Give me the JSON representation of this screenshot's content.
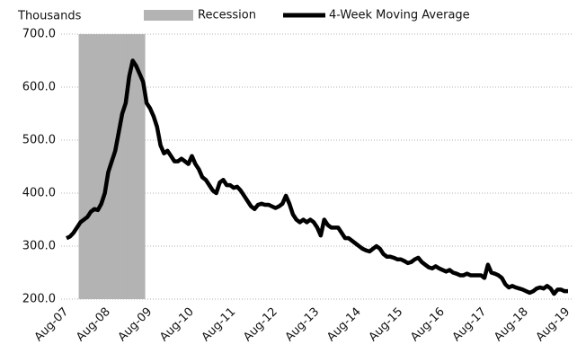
{
  "chart_data": {
    "type": "line",
    "y_axis_label": "Thousands",
    "categories": [
      "Aug-07",
      null,
      null,
      null,
      null,
      null,
      null,
      null,
      null,
      null,
      null,
      null,
      "Aug-08",
      null,
      null,
      null,
      null,
      null,
      null,
      null,
      null,
      null,
      null,
      null,
      "Aug-09",
      null,
      null,
      null,
      null,
      null,
      null,
      null,
      null,
      null,
      null,
      null,
      "Aug-10",
      null,
      null,
      null,
      null,
      null,
      null,
      null,
      null,
      null,
      null,
      null,
      "Aug-11",
      null,
      null,
      null,
      null,
      null,
      null,
      null,
      null,
      null,
      null,
      null,
      "Aug-12",
      null,
      null,
      null,
      null,
      null,
      null,
      null,
      null,
      null,
      null,
      null,
      "Aug-13",
      null,
      null,
      null,
      null,
      null,
      null,
      null,
      null,
      null,
      null,
      null,
      "Aug-14",
      null,
      null,
      null,
      null,
      null,
      null,
      null,
      null,
      null,
      null,
      null,
      "Aug-15",
      null,
      null,
      null,
      null,
      null,
      null,
      null,
      null,
      null,
      null,
      null,
      "Aug-16",
      null,
      null,
      null,
      null,
      null,
      null,
      null,
      null,
      null,
      null,
      null,
      "Aug-17",
      null,
      null,
      null,
      null,
      null,
      null,
      null,
      null,
      null,
      null,
      null,
      "Aug-18",
      null,
      null,
      null,
      null,
      null,
      null,
      null,
      null,
      null,
      null,
      null,
      "Aug-19"
    ],
    "series": [
      {
        "name": "Recession",
        "type": "shade",
        "color": "#b3b3b3",
        "values": [
          null,
          null,
          null,
          null,
          700,
          700,
          700,
          700,
          700,
          700,
          700,
          700,
          700,
          700,
          700,
          700,
          700,
          700,
          700,
          700,
          700,
          700,
          700,
          null,
          null,
          null,
          null,
          null,
          null,
          null,
          null,
          null,
          null,
          null,
          null,
          null,
          null,
          null,
          null,
          null,
          null,
          null,
          null,
          null,
          null,
          null,
          null,
          null,
          null,
          null,
          null,
          null,
          null,
          null,
          null,
          null,
          null,
          null,
          null,
          null,
          null,
          null,
          null,
          null,
          null,
          null,
          null,
          null,
          null,
          null,
          null,
          null,
          null,
          null,
          null,
          null,
          null,
          null,
          null,
          null,
          null,
          null,
          null,
          null,
          null,
          null,
          null,
          null,
          null,
          null,
          null,
          null,
          null,
          null,
          null,
          null,
          null,
          null,
          null,
          null,
          null,
          null,
          null,
          null,
          null,
          null,
          null,
          null,
          null,
          null,
          null,
          null,
          null,
          null,
          null,
          null,
          null,
          null,
          null,
          null,
          null,
          null,
          null,
          null,
          null,
          null,
          null,
          null,
          null,
          null,
          null,
          null,
          null,
          null,
          null,
          null,
          null,
          null,
          null,
          null,
          null,
          null,
          null,
          null,
          null
        ]
      },
      {
        "name": "4-Week Moving Average",
        "type": "line",
        "color": "#000000",
        "values": [
          315,
          318,
          325,
          335,
          345,
          350,
          355,
          365,
          370,
          368,
          380,
          400,
          440,
          460,
          480,
          515,
          550,
          570,
          620,
          650,
          640,
          625,
          610,
          570,
          560,
          545,
          525,
          490,
          475,
          480,
          470,
          460,
          460,
          465,
          460,
          455,
          470,
          455,
          445,
          430,
          425,
          415,
          405,
          400,
          420,
          425,
          415,
          415,
          410,
          412,
          405,
          395,
          385,
          375,
          370,
          378,
          380,
          378,
          378,
          375,
          372,
          375,
          380,
          395,
          380,
          360,
          350,
          345,
          350,
          345,
          350,
          345,
          335,
          320,
          350,
          340,
          335,
          335,
          335,
          325,
          315,
          315,
          310,
          305,
          300,
          295,
          292,
          290,
          295,
          300,
          295,
          285,
          280,
          280,
          278,
          275,
          275,
          272,
          268,
          270,
          275,
          278,
          270,
          265,
          260,
          258,
          262,
          258,
          255,
          252,
          255,
          250,
          248,
          245,
          245,
          248,
          245,
          245,
          245,
          245,
          240,
          265,
          250,
          248,
          245,
          240,
          228,
          222,
          225,
          222,
          220,
          218,
          215,
          212,
          215,
          220,
          222,
          220,
          225,
          220,
          210,
          218,
          218,
          215,
          215
        ]
      }
    ],
    "ylim": [
      200,
      700
    ],
    "yticks": [
      {
        "value": 200,
        "label": "200.0"
      },
      {
        "value": 300,
        "label": "300.0"
      },
      {
        "value": 400,
        "label": "400.0"
      },
      {
        "value": 500,
        "label": "500.0"
      },
      {
        "value": 600,
        "label": "600.0"
      },
      {
        "value": 700,
        "label": "700.0"
      }
    ],
    "grid": true,
    "legend": "top"
  }
}
